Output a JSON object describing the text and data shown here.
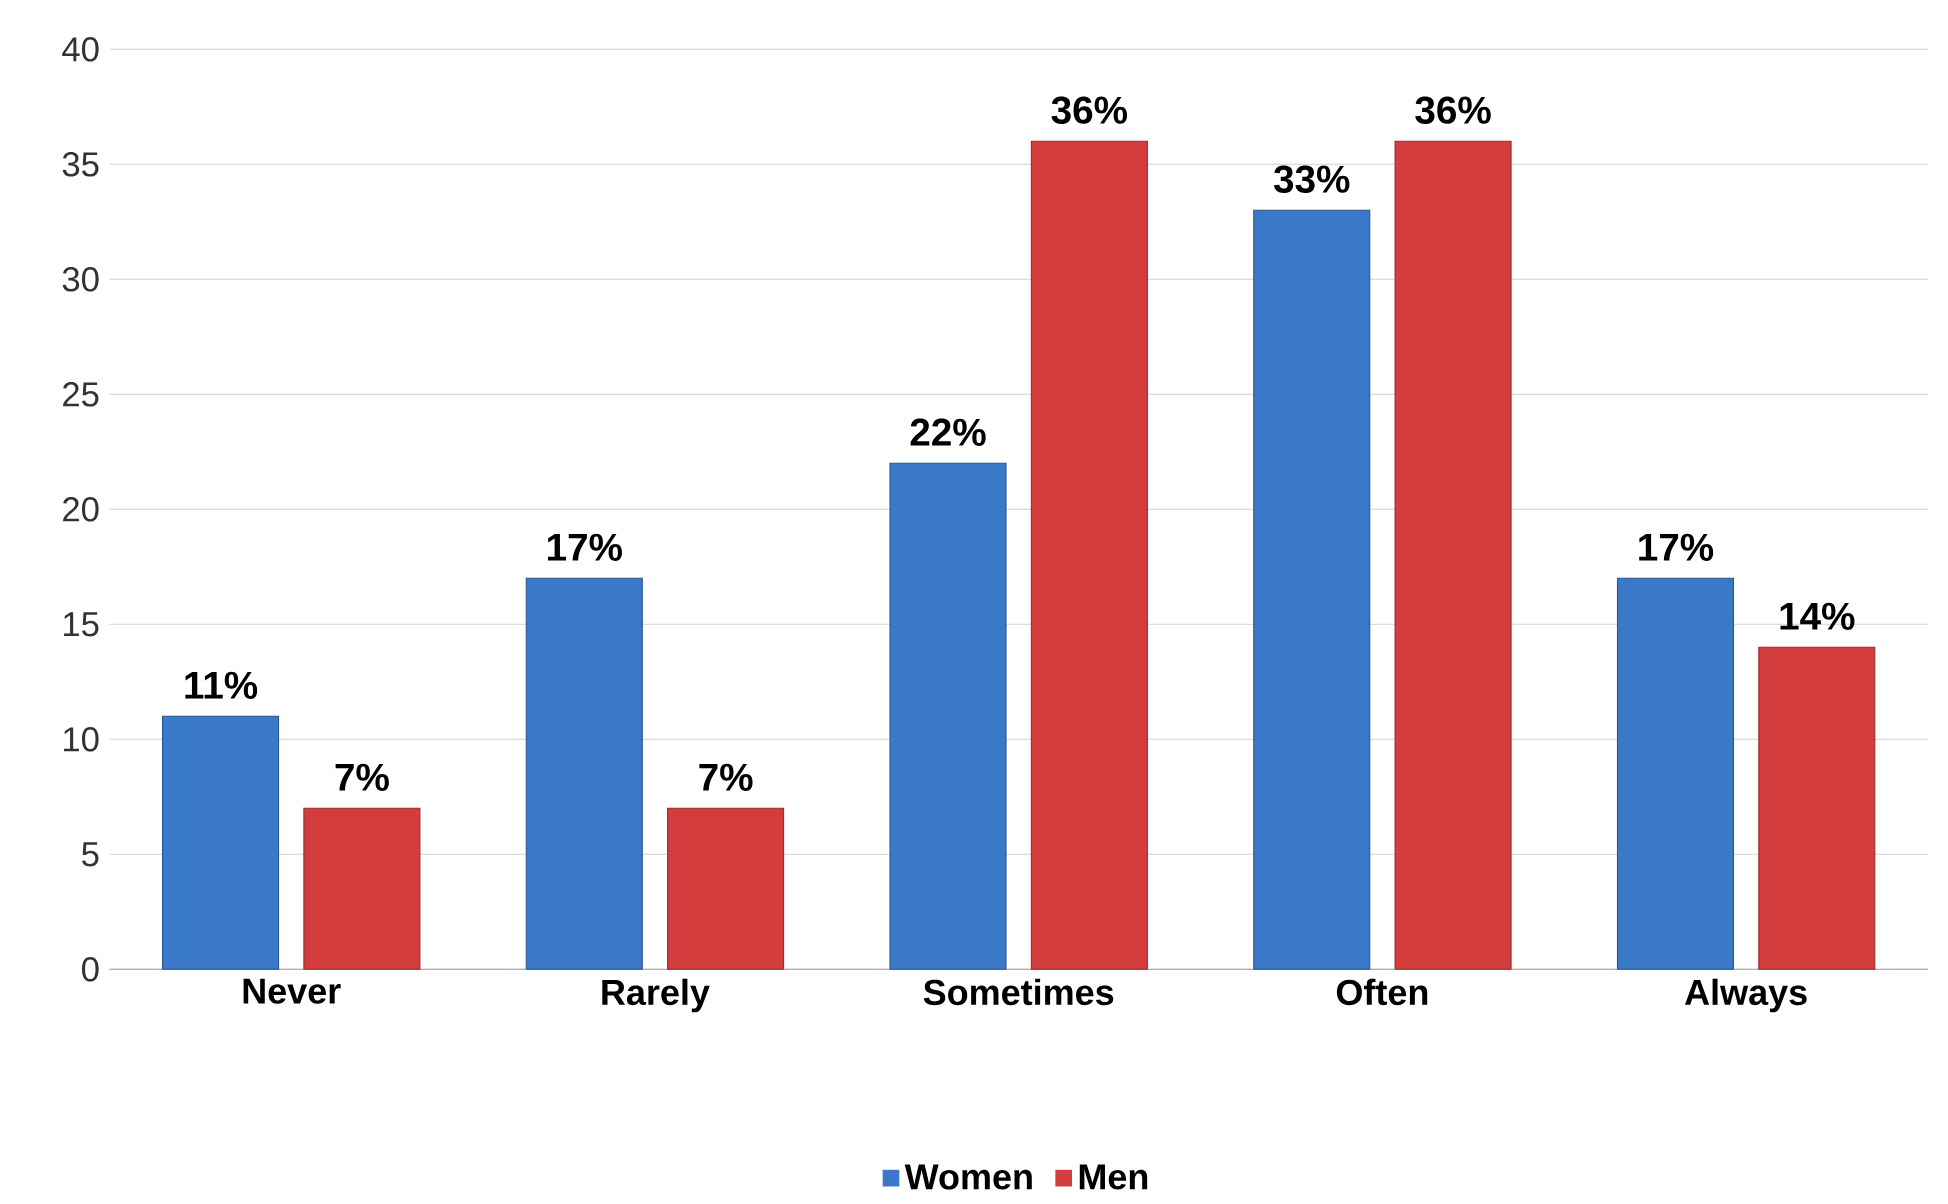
{
  "chart_data": {
    "type": "bar",
    "categories": [
      "Never",
      "Rarely",
      "Sometimes",
      "Often",
      "Always"
    ],
    "series": [
      {
        "name": "Women",
        "color": "#3a78c9",
        "values": [
          11,
          17,
          22,
          33,
          17
        ],
        "value_labels": [
          "11%",
          "17%",
          "22%",
          "33%",
          "17%"
        ]
      },
      {
        "name": "Men",
        "color": "#d43d3d",
        "values": [
          7,
          7,
          36,
          36,
          14
        ],
        "value_labels": [
          "7%",
          "7%",
          "36%",
          "36%",
          "14%"
        ]
      }
    ],
    "ylim": [
      0,
      40
    ],
    "yticks": [
      0,
      5,
      10,
      15,
      20,
      25,
      30,
      35,
      40
    ],
    "grid": "y",
    "legend": "bottom"
  }
}
